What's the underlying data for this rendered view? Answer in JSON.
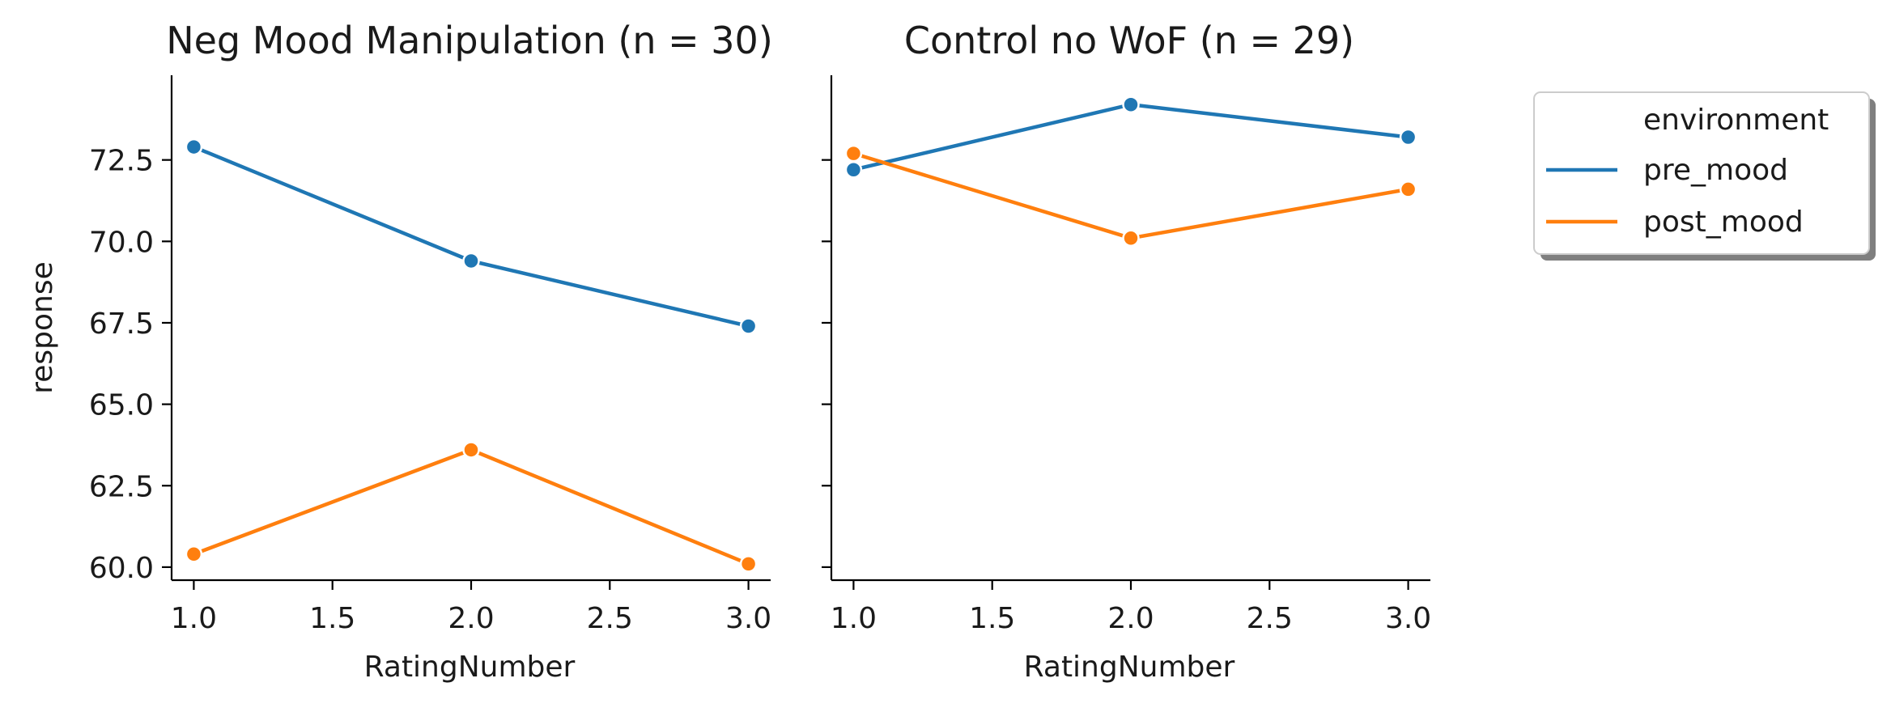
{
  "chart_data": [
    {
      "type": "line",
      "title": "Neg Mood Manipulation (n = 30)",
      "xlabel": "RatingNumber",
      "ylabel": "response",
      "xlim": [
        0.92,
        3.08
      ],
      "ylim": [
        59.6,
        75.1
      ],
      "xticks": [
        "1.0",
        "1.5",
        "2.0",
        "2.5",
        "3.0"
      ],
      "yticks": [
        "60.0",
        "62.5",
        "65.0",
        "67.5",
        "70.0",
        "72.5"
      ],
      "x": [
        1.0,
        2.0,
        3.0
      ],
      "series": [
        {
          "name": "pre_mood",
          "color": "#1f77b4",
          "values": [
            72.9,
            69.4,
            67.4
          ]
        },
        {
          "name": "post_mood",
          "color": "#ff7f0e",
          "values": [
            60.4,
            63.6,
            60.1
          ]
        }
      ]
    },
    {
      "type": "line",
      "title": "Control no WoF (n = 29)",
      "xlabel": "RatingNumber",
      "ylabel": "",
      "xlim": [
        0.92,
        3.08
      ],
      "ylim": [
        59.6,
        75.1
      ],
      "xticks": [
        "1.0",
        "1.5",
        "2.0",
        "2.5",
        "3.0"
      ],
      "yticks": [
        "60.0",
        "62.5",
        "65.0",
        "67.5",
        "70.0",
        "72.5"
      ],
      "x": [
        1.0,
        2.0,
        3.0
      ],
      "series": [
        {
          "name": "pre_mood",
          "color": "#1f77b4",
          "values": [
            72.2,
            74.2,
            73.2
          ]
        },
        {
          "name": "post_mood",
          "color": "#ff7f0e",
          "values": [
            72.7,
            70.1,
            71.6
          ]
        }
      ]
    }
  ],
  "legend": {
    "title": "environment",
    "placement": "right",
    "entries": [
      {
        "label": "pre_mood",
        "color": "#1f77b4"
      },
      {
        "label": "post_mood",
        "color": "#ff7f0e"
      }
    ]
  }
}
